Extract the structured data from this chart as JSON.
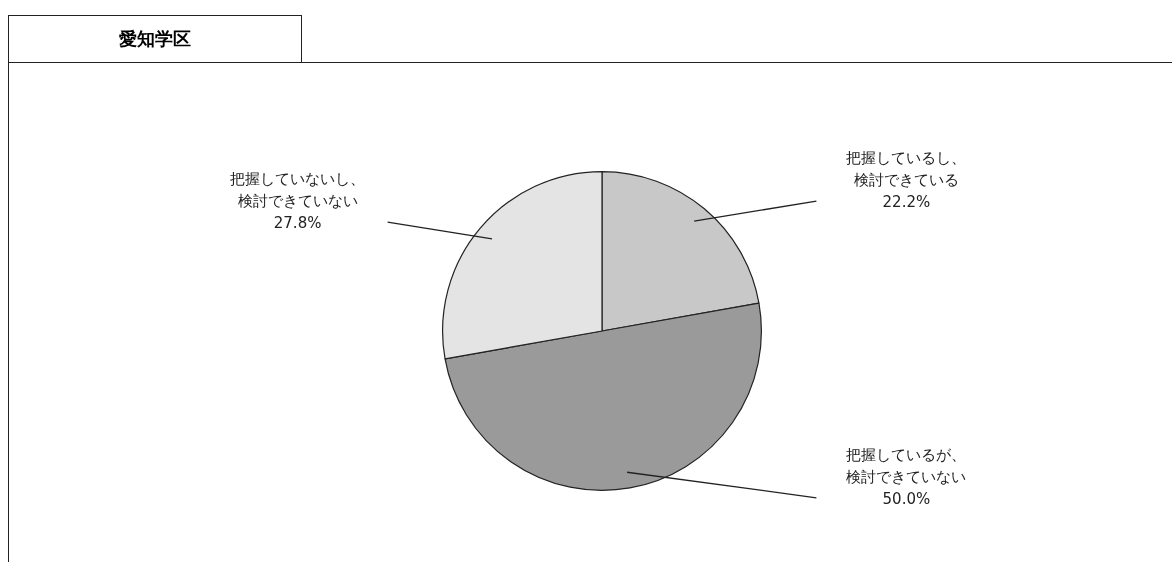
{
  "chart_data": {
    "type": "pie",
    "title": "愛知学区",
    "categories": [
      "把握しているし、検討できている",
      "把握しているが、検討できていない",
      "把握していないし、検討できていない"
    ],
    "values": [
      22.2,
      50.0,
      27.8
    ],
    "colors": [
      "#c8c8c8",
      "#9a9a9a",
      "#e4e4e4"
    ],
    "value_labels": [
      "22.2%",
      "50.0%",
      "27.8%"
    ],
    "legend": false
  }
}
